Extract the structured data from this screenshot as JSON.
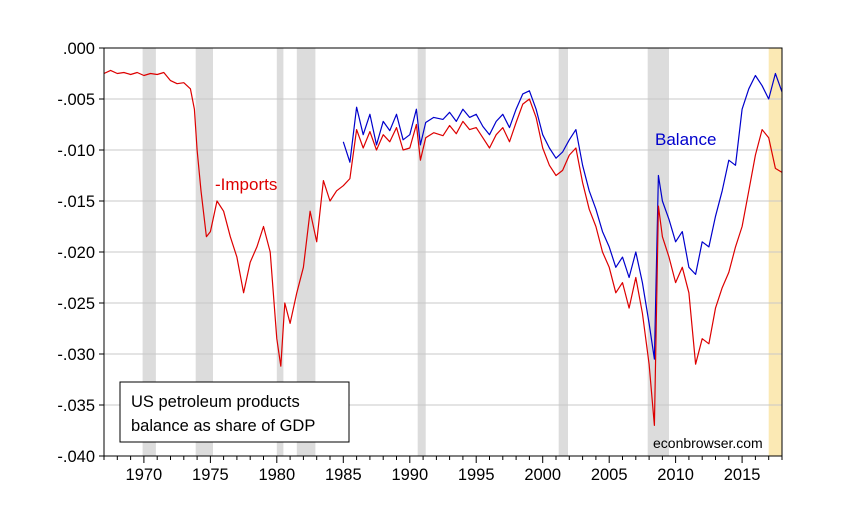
{
  "chart_data": {
    "type": "line",
    "title": "",
    "xlabel": "",
    "ylabel": "",
    "xlim": [
      1967,
      2018
    ],
    "ylim": [
      -0.04,
      0.0
    ],
    "xticks": [
      {
        "value": 1970,
        "label": "1970"
      },
      {
        "value": 1975,
        "label": "1975"
      },
      {
        "value": 1980,
        "label": "1980"
      },
      {
        "value": 1985,
        "label": "1985"
      },
      {
        "value": 1990,
        "label": "1990"
      },
      {
        "value": 1995,
        "label": "1995"
      },
      {
        "value": 2000,
        "label": "2000"
      },
      {
        "value": 2005,
        "label": "2005"
      },
      {
        "value": 2010,
        "label": "2010"
      },
      {
        "value": 2015,
        "label": "2015"
      }
    ],
    "yticks": [
      {
        "value": 0.0,
        "label": ".000"
      },
      {
        "value": -0.005,
        "label": "-.005"
      },
      {
        "value": -0.01,
        "label": "-.010"
      },
      {
        "value": -0.015,
        "label": "-.015"
      },
      {
        "value": -0.02,
        "label": "-.020"
      },
      {
        "value": -0.025,
        "label": "-.025"
      },
      {
        "value": -0.03,
        "label": "-.030"
      },
      {
        "value": -0.035,
        "label": "-.035"
      },
      {
        "value": -0.04,
        "label": "-.040"
      }
    ],
    "grid": true,
    "recession_bands": [
      [
        1969.9,
        1970.9
      ],
      [
        1973.9,
        1975.2
      ],
      [
        1980.0,
        1980.5
      ],
      [
        1981.5,
        1982.9
      ],
      [
        1990.6,
        1991.2
      ],
      [
        2001.2,
        2001.9
      ],
      [
        2007.9,
        2009.5
      ]
    ],
    "highlight_band": [
      2017.0,
      2018.0
    ],
    "colors": {
      "balance": "#0000cc",
      "imports": "#dd0000",
      "recession": "#dcdcdc",
      "highlight": "#fbe9b4",
      "grid": "#c8c8c8"
    },
    "series": [
      {
        "name": "Balance",
        "key": "balance",
        "x": [
          1985.0,
          1985.5,
          1986.0,
          1986.5,
          1987.0,
          1987.5,
          1988.0,
          1988.5,
          1989.0,
          1989.5,
          1990.0,
          1990.5,
          1990.8,
          1991.2,
          1991.8,
          1992.5,
          1993.0,
          1993.5,
          1994.0,
          1994.5,
          1995.0,
          1995.5,
          1996.0,
          1996.5,
          1997.0,
          1997.5,
          1998.0,
          1998.5,
          1999.0,
          1999.5,
          2000.0,
          2000.5,
          2001.0,
          2001.5,
          2002.0,
          2002.5,
          2003.0,
          2003.5,
          2004.0,
          2004.5,
          2005.0,
          2005.5,
          2006.0,
          2006.5,
          2007.0,
          2007.5,
          2008.0,
          2008.4,
          2008.7,
          2009.0,
          2009.5,
          2010.0,
          2010.5,
          2011.0,
          2011.5,
          2012.0,
          2012.5,
          2013.0,
          2013.5,
          2014.0,
          2014.5,
          2015.0,
          2015.5,
          2016.0,
          2016.5,
          2017.0,
          2017.5,
          2018.0
        ],
        "values": [
          -0.0092,
          -0.0112,
          -0.0058,
          -0.0085,
          -0.0065,
          -0.0095,
          -0.0072,
          -0.0081,
          -0.0065,
          -0.009,
          -0.0085,
          -0.006,
          -0.0095,
          -0.0073,
          -0.0068,
          -0.007,
          -0.0063,
          -0.0072,
          -0.006,
          -0.0068,
          -0.0065,
          -0.0077,
          -0.0085,
          -0.0072,
          -0.0065,
          -0.0078,
          -0.006,
          -0.0045,
          -0.0042,
          -0.006,
          -0.0085,
          -0.0098,
          -0.0108,
          -0.0102,
          -0.009,
          -0.008,
          -0.0115,
          -0.014,
          -0.0158,
          -0.018,
          -0.0195,
          -0.0215,
          -0.0205,
          -0.0225,
          -0.02,
          -0.023,
          -0.027,
          -0.0305,
          -0.0125,
          -0.015,
          -0.0168,
          -0.019,
          -0.018,
          -0.0215,
          -0.0222,
          -0.019,
          -0.0195,
          -0.0165,
          -0.014,
          -0.011,
          -0.0115,
          -0.006,
          -0.004,
          -0.0027,
          -0.0037,
          -0.005,
          -0.0025,
          -0.0043
        ]
      },
      {
        "name": "-Imports",
        "key": "imports",
        "x": [
          1967.0,
          1967.5,
          1968.0,
          1968.5,
          1969.0,
          1969.5,
          1970.0,
          1970.5,
          1971.0,
          1971.5,
          1972.0,
          1972.5,
          1973.0,
          1973.5,
          1973.8,
          1974.0,
          1974.3,
          1974.7,
          1975.0,
          1975.5,
          1976.0,
          1976.5,
          1977.0,
          1977.5,
          1978.0,
          1978.5,
          1979.0,
          1979.5,
          1980.0,
          1980.3,
          1980.6,
          1981.0,
          1981.5,
          1982.0,
          1982.5,
          1983.0,
          1983.5,
          1984.0,
          1984.5,
          1985.0,
          1985.5,
          1986.0,
          1986.5,
          1987.0,
          1987.5,
          1988.0,
          1988.5,
          1989.0,
          1989.5,
          1990.0,
          1990.5,
          1990.8,
          1991.2,
          1991.8,
          1992.5,
          1993.0,
          1993.5,
          1994.0,
          1994.5,
          1995.0,
          1995.5,
          1996.0,
          1996.5,
          1997.0,
          1997.5,
          1998.0,
          1998.5,
          1999.0,
          1999.5,
          2000.0,
          2000.5,
          2001.0,
          2001.5,
          2002.0,
          2002.5,
          2003.0,
          2003.5,
          2004.0,
          2004.5,
          2005.0,
          2005.5,
          2006.0,
          2006.5,
          2007.0,
          2007.5,
          2008.0,
          2008.4,
          2008.7,
          2009.0,
          2009.5,
          2010.0,
          2010.5,
          2011.0,
          2011.5,
          2012.0,
          2012.5,
          2013.0,
          2013.5,
          2014.0,
          2014.5,
          2015.0,
          2015.5,
          2016.0,
          2016.5,
          2017.0,
          2017.5,
          2018.0
        ],
        "values": [
          -0.0025,
          -0.0022,
          -0.0025,
          -0.0024,
          -0.0026,
          -0.0024,
          -0.0027,
          -0.0025,
          -0.0026,
          -0.0024,
          -0.0032,
          -0.0035,
          -0.0034,
          -0.004,
          -0.006,
          -0.01,
          -0.014,
          -0.0185,
          -0.018,
          -0.015,
          -0.016,
          -0.0185,
          -0.0205,
          -0.024,
          -0.021,
          -0.0195,
          -0.0175,
          -0.02,
          -0.0285,
          -0.0312,
          -0.025,
          -0.027,
          -0.024,
          -0.0215,
          -0.016,
          -0.019,
          -0.013,
          -0.015,
          -0.014,
          -0.0135,
          -0.0128,
          -0.008,
          -0.0098,
          -0.0082,
          -0.01,
          -0.0085,
          -0.0092,
          -0.0078,
          -0.01,
          -0.0098,
          -0.0075,
          -0.011,
          -0.0088,
          -0.0083,
          -0.0086,
          -0.0076,
          -0.0084,
          -0.0072,
          -0.008,
          -0.0078,
          -0.0088,
          -0.0098,
          -0.0085,
          -0.0078,
          -0.0092,
          -0.0073,
          -0.0055,
          -0.005,
          -0.0068,
          -0.0098,
          -0.0115,
          -0.0125,
          -0.012,
          -0.0105,
          -0.0098,
          -0.0132,
          -0.0158,
          -0.0175,
          -0.02,
          -0.0215,
          -0.024,
          -0.023,
          -0.0255,
          -0.0225,
          -0.026,
          -0.031,
          -0.037,
          -0.0155,
          -0.0185,
          -0.0205,
          -0.023,
          -0.0215,
          -0.024,
          -0.031,
          -0.0285,
          -0.029,
          -0.0255,
          -0.0235,
          -0.022,
          -0.0195,
          -0.0175,
          -0.014,
          -0.0105,
          -0.008,
          -0.0088,
          -0.0118,
          -0.0122
        ]
      }
    ],
    "annotations": [
      {
        "key": "balance_label",
        "text": "Balance",
        "x": 2011.5,
        "y": -0.0085,
        "color": "#0000cc"
      },
      {
        "key": "imports_label",
        "text": "-Imports",
        "x": 1975.2,
        "y": -0.013,
        "color": "#dd0000"
      }
    ],
    "legend_box": {
      "lines": [
        "US petroleum products",
        "balance as share of GDP"
      ],
      "placement": "bottom-left"
    },
    "watermark": "econbrowser.com"
  }
}
